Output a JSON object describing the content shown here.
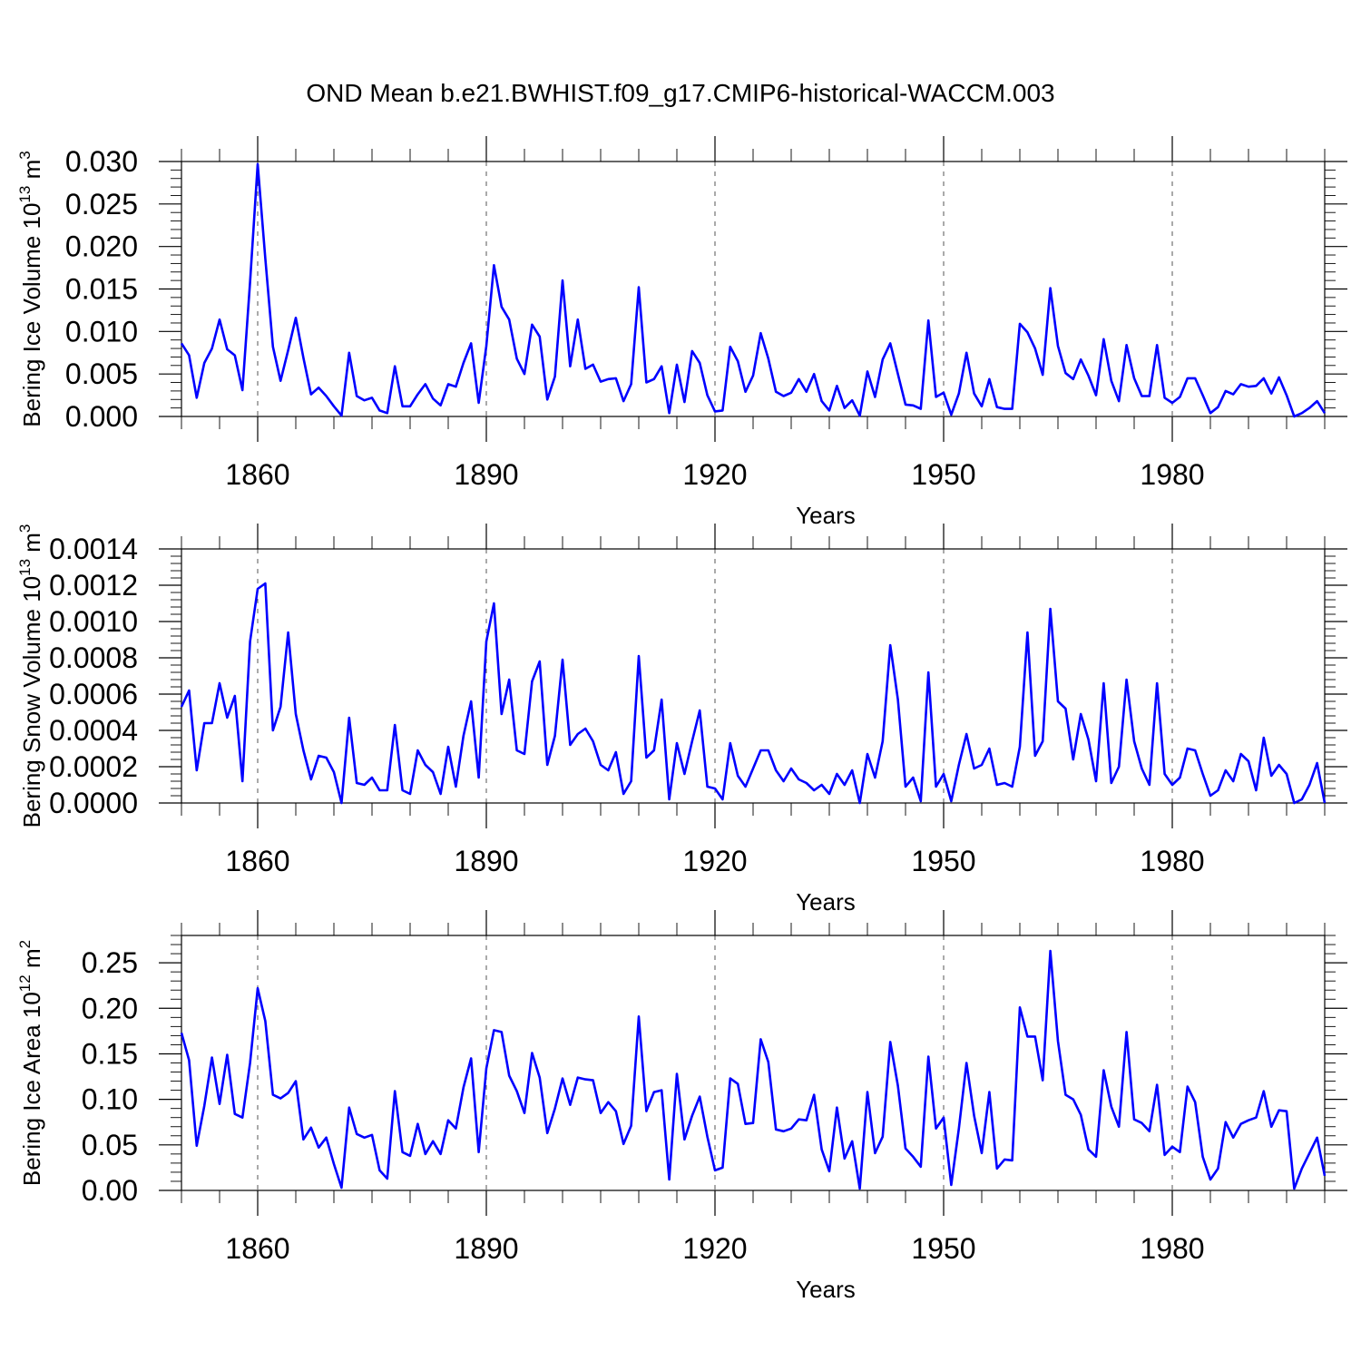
{
  "title": "OND Mean b.e21.BWHIST.f09_g17.CMIP6-historical-WACCM.003",
  "colors": {
    "line": "#0000ff",
    "axes": "#000000",
    "grid": "#555555"
  },
  "chart_data": [
    {
      "type": "line",
      "name": "ice-volume",
      "ylabel": "Bering Ice Volume 10",
      "ylabel_exponent": "13",
      "ylabel_unit": "m",
      "ylabel_unit_exponent": "3",
      "xlabel": "Years",
      "xlim": [
        1850,
        2000
      ],
      "ylim": [
        0,
        0.03
      ],
      "yticks": [
        0.0,
        0.005,
        0.01,
        0.015,
        0.02,
        0.025,
        0.03
      ],
      "ytick_labels": [
        "0.000",
        "0.005",
        "0.010",
        "0.015",
        "0.020",
        "0.025",
        "0.030"
      ],
      "xticks": [
        1860,
        1890,
        1920,
        1950,
        1980
      ],
      "xtick_labels": [
        "1860",
        "1890",
        "1920",
        "1950",
        "1980"
      ],
      "x_start": 1850,
      "values": [
        0.0086,
        0.0072,
        0.0022,
        0.0063,
        0.008,
        0.0114,
        0.0079,
        0.0072,
        0.0031,
        0.0158,
        0.0297,
        0.0186,
        0.0082,
        0.0042,
        0.0078,
        0.0116,
        0.0069,
        0.0026,
        0.0034,
        0.0024,
        0.0012,
        0.0001,
        0.0075,
        0.0024,
        0.0019,
        0.0022,
        0.0007,
        0.0004,
        0.0059,
        0.0012,
        0.0012,
        0.0026,
        0.0038,
        0.0021,
        0.0013,
        0.0038,
        0.0035,
        0.0063,
        0.0086,
        0.0016,
        0.0083,
        0.0178,
        0.0129,
        0.0114,
        0.0068,
        0.005,
        0.0108,
        0.0094,
        0.002,
        0.0047,
        0.016,
        0.0059,
        0.0114,
        0.0056,
        0.0061,
        0.0041,
        0.0044,
        0.0045,
        0.0018,
        0.0038,
        0.0152,
        0.004,
        0.0044,
        0.0059,
        0.0004,
        0.0061,
        0.0017,
        0.0077,
        0.0063,
        0.0025,
        0.0006,
        0.0007,
        0.0082,
        0.0065,
        0.0029,
        0.0048,
        0.0098,
        0.0068,
        0.0029,
        0.0024,
        0.0028,
        0.0044,
        0.0029,
        0.005,
        0.0018,
        0.0007,
        0.0036,
        0.001,
        0.0019,
        0.0001,
        0.0053,
        0.0023,
        0.0067,
        0.0086,
        0.005,
        0.0014,
        0.0013,
        0.0009,
        0.0113,
        0.0023,
        0.0028,
        0.0002,
        0.0027,
        0.0075,
        0.0027,
        0.0012,
        0.0044,
        0.0011,
        0.0009,
        0.0009,
        0.0109,
        0.0099,
        0.008,
        0.0049,
        0.0151,
        0.0083,
        0.0051,
        0.0044,
        0.0067,
        0.0048,
        0.0025,
        0.0091,
        0.0042,
        0.0018,
        0.0084,
        0.0045,
        0.0024,
        0.0024,
        0.0084,
        0.0022,
        0.0016,
        0.0023,
        0.0045,
        0.0045,
        0.0025,
        0.0004,
        0.0011,
        0.003,
        0.0026,
        0.0038,
        0.0035,
        0.0036,
        0.0045,
        0.0027,
        0.0046,
        0.0025,
        0.0,
        0.0004,
        0.001,
        0.0018,
        0.0004
      ]
    },
    {
      "type": "line",
      "name": "snow-volume",
      "ylabel": "Bering Snow Volume 10",
      "ylabel_exponent": "13",
      "ylabel_unit": "m",
      "ylabel_unit_exponent": "3",
      "xlabel": "Years",
      "xlim": [
        1850,
        2000
      ],
      "ylim": [
        0,
        0.0014
      ],
      "yticks": [
        0.0,
        0.0002,
        0.0004,
        0.0006,
        0.0008,
        0.001,
        0.0012,
        0.0014
      ],
      "ytick_labels": [
        "0.0000",
        "0.0002",
        "0.0004",
        "0.0006",
        "0.0008",
        "0.0010",
        "0.0012",
        "0.0014"
      ],
      "xticks": [
        1860,
        1890,
        1920,
        1950,
        1980
      ],
      "xtick_labels": [
        "1860",
        "1890",
        "1920",
        "1950",
        "1980"
      ],
      "x_start": 1850,
      "values": [
        0.00053,
        0.00062,
        0.00018,
        0.00044,
        0.00044,
        0.00066,
        0.00047,
        0.00059,
        0.00012,
        0.00089,
        0.00118,
        0.00121,
        0.0004,
        0.00053,
        0.00094,
        0.00049,
        0.00029,
        0.00013,
        0.00026,
        0.00025,
        0.00017,
        0.0,
        0.00047,
        0.00011,
        0.0001,
        0.00014,
        7e-05,
        7e-05,
        0.00043,
        7e-05,
        5e-05,
        0.00029,
        0.00021,
        0.00017,
        5e-05,
        0.00031,
        9e-05,
        0.00037,
        0.00056,
        0.00014,
        0.00089,
        0.0011,
        0.00049,
        0.00068,
        0.00029,
        0.00027,
        0.00067,
        0.00078,
        0.00021,
        0.00037,
        0.00079,
        0.00032,
        0.00038,
        0.00041,
        0.00034,
        0.00021,
        0.00018,
        0.00028,
        5e-05,
        0.00012,
        0.00081,
        0.00025,
        0.00029,
        0.00057,
        2e-05,
        0.00033,
        0.00016,
        0.00034,
        0.00051,
        9e-05,
        8e-05,
        2e-05,
        0.00033,
        0.00015,
        9e-05,
        0.00019,
        0.00029,
        0.00029,
        0.00018,
        0.00012,
        0.00019,
        0.00013,
        0.00011,
        7e-05,
        0.0001,
        5e-05,
        0.00016,
        0.0001,
        0.00018,
        0.0,
        0.00027,
        0.00014,
        0.00034,
        0.00087,
        0.00057,
        9e-05,
        0.00014,
        1e-05,
        0.00072,
        9e-05,
        0.00016,
        1e-05,
        0.00021,
        0.00038,
        0.00019,
        0.00021,
        0.0003,
        0.0001,
        0.00011,
        9e-05,
        0.00031,
        0.00094,
        0.00026,
        0.00034,
        0.00107,
        0.00056,
        0.00052,
        0.00024,
        0.00049,
        0.00035,
        0.00012,
        0.00066,
        0.00011,
        0.0002,
        0.00068,
        0.00034,
        0.00019,
        0.0001,
        0.00066,
        0.00016,
        0.0001,
        0.00014,
        0.0003,
        0.00029,
        0.00016,
        4e-05,
        7e-05,
        0.00018,
        0.00012,
        0.00027,
        0.00023,
        7e-05,
        0.00036,
        0.00015,
        0.00021,
        0.00016,
        0.0,
        2e-05,
        0.0001,
        0.00022,
        0.0
      ]
    },
    {
      "type": "line",
      "name": "ice-area",
      "ylabel": "Bering Ice Area 10",
      "ylabel_exponent": "12",
      "ylabel_unit": "m",
      "ylabel_unit_exponent": "2",
      "xlabel": "Years",
      "xlim": [
        1850,
        2000
      ],
      "ylim": [
        0,
        0.28
      ],
      "yticks": [
        0.0,
        0.05,
        0.1,
        0.15,
        0.2,
        0.25
      ],
      "ytick_labels": [
        "0.00",
        "0.05",
        "0.10",
        "0.15",
        "0.20",
        "0.25"
      ],
      "xticks": [
        1860,
        1890,
        1920,
        1950,
        1980
      ],
      "xtick_labels": [
        "1860",
        "1890",
        "1920",
        "1950",
        "1980"
      ],
      "x_start": 1850,
      "values": [
        0.173,
        0.143,
        0.049,
        0.093,
        0.146,
        0.095,
        0.149,
        0.084,
        0.08,
        0.14,
        0.222,
        0.186,
        0.105,
        0.101,
        0.107,
        0.12,
        0.056,
        0.069,
        0.047,
        0.058,
        0.029,
        0.003,
        0.091,
        0.062,
        0.058,
        0.061,
        0.022,
        0.013,
        0.109,
        0.042,
        0.038,
        0.073,
        0.04,
        0.054,
        0.04,
        0.077,
        0.068,
        0.113,
        0.145,
        0.042,
        0.134,
        0.176,
        0.174,
        0.126,
        0.109,
        0.085,
        0.151,
        0.124,
        0.063,
        0.09,
        0.123,
        0.094,
        0.124,
        0.122,
        0.121,
        0.085,
        0.097,
        0.087,
        0.051,
        0.071,
        0.191,
        0.087,
        0.108,
        0.11,
        0.012,
        0.128,
        0.056,
        0.082,
        0.103,
        0.059,
        0.022,
        0.025,
        0.123,
        0.117,
        0.073,
        0.074,
        0.166,
        0.141,
        0.067,
        0.065,
        0.068,
        0.078,
        0.077,
        0.105,
        0.045,
        0.021,
        0.091,
        0.035,
        0.054,
        0.002,
        0.108,
        0.041,
        0.059,
        0.163,
        0.115,
        0.046,
        0.037,
        0.026,
        0.147,
        0.068,
        0.08,
        0.006,
        0.068,
        0.14,
        0.082,
        0.041,
        0.108,
        0.024,
        0.034,
        0.033,
        0.201,
        0.169,
        0.169,
        0.121,
        0.263,
        0.164,
        0.105,
        0.1,
        0.083,
        0.045,
        0.037,
        0.132,
        0.092,
        0.07,
        0.174,
        0.078,
        0.074,
        0.065,
        0.116,
        0.039,
        0.048,
        0.042,
        0.114,
        0.097,
        0.037,
        0.012,
        0.024,
        0.075,
        0.058,
        0.073,
        0.077,
        0.08,
        0.109,
        0.07,
        0.088,
        0.087,
        0.002,
        0.024,
        0.041,
        0.058,
        0.016
      ]
    }
  ]
}
